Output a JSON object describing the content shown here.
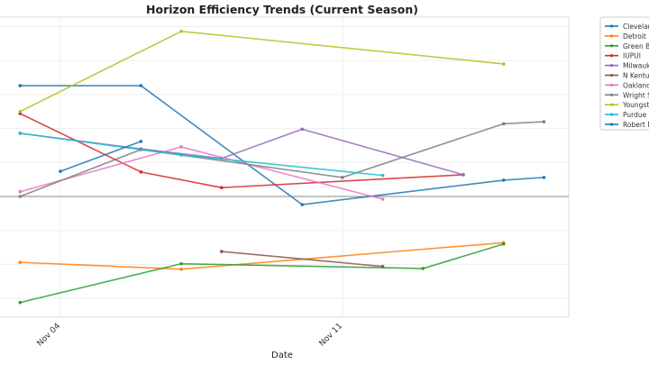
{
  "chart_data": {
    "type": "line",
    "title": "Horizon Efficiency Trends (Current Season)",
    "xlabel": "Date",
    "ylabel": "",
    "x_ticks": [
      "Nov 04",
      "Nov 11"
    ],
    "grid": true,
    "zero_line": true,
    "legend_placement": "outside-right",
    "series": [
      {
        "name": "Clevelan",
        "color": "#1f77b4",
        "points": [
          [
            "Nov 03",
            16.3
          ],
          [
            "Nov 06",
            16.3
          ],
          [
            "Nov 10",
            -1.2
          ],
          [
            "Nov 15",
            2.4
          ],
          [
            "Nov 16",
            2.8
          ]
        ]
      },
      {
        "name": "Detroit I",
        "color": "#ff7f0e",
        "points": [
          [
            "Nov 03",
            -9.7
          ],
          [
            "Nov 07",
            -10.7
          ],
          [
            "Nov 15",
            -6.8
          ]
        ]
      },
      {
        "name": "Green B",
        "color": "#2ca02c",
        "points": [
          [
            "Nov 03",
            -15.6
          ],
          [
            "Nov 07",
            -9.9
          ],
          [
            "Nov 13",
            -10.6
          ],
          [
            "Nov 15",
            -7.0
          ]
        ]
      },
      {
        "name": "IUPUI",
        "color": "#d62728",
        "points": [
          [
            "Nov 03",
            12.2
          ],
          [
            "Nov 06",
            3.6
          ],
          [
            "Nov 08",
            1.3
          ],
          [
            "Nov 14",
            3.2
          ]
        ]
      },
      {
        "name": "Milwauk",
        "color": "#9467bd",
        "points": [
          [
            "Nov 03",
            9.3
          ],
          [
            "Nov 06",
            7.0
          ],
          [
            "Nov 08",
            5.6
          ],
          [
            "Nov 10",
            9.9
          ],
          [
            "Nov 14",
            3.2
          ]
        ]
      },
      {
        "name": "N Kentu",
        "color": "#8c564b",
        "points": [
          [
            "Nov 08",
            -8.1
          ],
          [
            "Nov 12",
            -10.3
          ]
        ]
      },
      {
        "name": "Oakland",
        "color": "#e377c2",
        "points": [
          [
            "Nov 03",
            0.7
          ],
          [
            "Nov 07",
            7.3
          ],
          [
            "Nov 12",
            -0.4
          ]
        ]
      },
      {
        "name": "Wright S",
        "color": "#7f7f7f",
        "points": [
          [
            "Nov 03",
            0.0
          ],
          [
            "Nov 06",
            6.9
          ],
          [
            "Nov 11",
            2.8
          ],
          [
            "Nov 15",
            10.7
          ],
          [
            "Nov 16",
            11.0
          ]
        ]
      },
      {
        "name": "Youngst",
        "color": "#bcbd22",
        "points": [
          [
            "Nov 03",
            12.5
          ],
          [
            "Nov 07",
            24.3
          ],
          [
            "Nov 15",
            19.5
          ]
        ]
      },
      {
        "name": "Purdue I",
        "color": "#17becf",
        "points": [
          [
            "Nov 03",
            9.3
          ],
          [
            "Nov 07",
            6.1
          ],
          [
            "Nov 12",
            3.1
          ]
        ]
      },
      {
        "name": "Robert M",
        "color": "#1f77b4",
        "points": [
          [
            "Nov 04",
            3.7
          ],
          [
            "Nov 06",
            8.1
          ]
        ]
      }
    ]
  }
}
